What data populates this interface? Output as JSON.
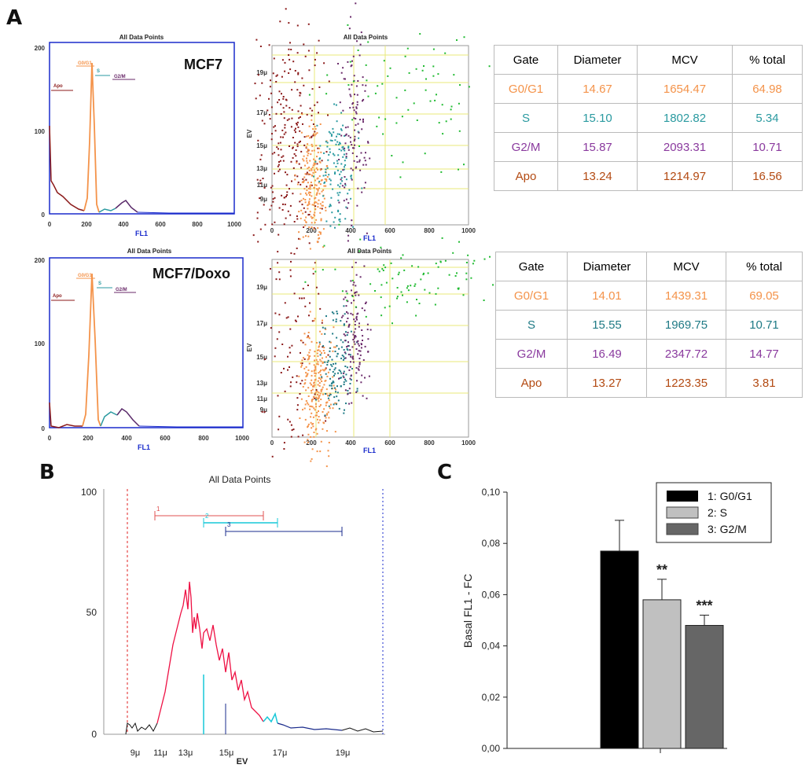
{
  "panel_labels": {
    "a": "A",
    "b": "B",
    "c": "C"
  },
  "colors": {
    "g0g1": "#f4934a",
    "s": "#2a9aa0",
    "g2m": "#8a3a9e",
    "apo": "#b34a12",
    "apo_dark": "#8b1a1a",
    "blue": "#1a2bcc"
  },
  "flow": {
    "title": "All Data Points",
    "fl1_label": "FL1",
    "ev_label": "EV",
    "cell_lines": [
      "MCF7",
      "MCF7/Doxo"
    ],
    "hist_y_ticks": [
      "0",
      "100",
      "200"
    ],
    "fl1_ticks": [
      "0",
      "200",
      "400",
      "600",
      "800",
      "1000"
    ],
    "gate_labels": [
      "Apo",
      "G0/G1",
      "S",
      "G2/M"
    ],
    "scatter_y_ticks_1": [
      "9μ",
      "11μ",
      "13μ",
      "15μ",
      "17μ",
      "19μ"
    ],
    "scatter_y_ticks_2": [
      "9μ",
      "11μ",
      "13μ",
      "15μ",
      "17μ",
      "19μ"
    ]
  },
  "tables": {
    "headers": [
      "Gate",
      "Diameter",
      "MCV",
      "% total"
    ],
    "mcf7": [
      {
        "gate": "G0/G1",
        "diameter": "14.67",
        "mcv": "1654.47",
        "total": "64.98"
      },
      {
        "gate": "S",
        "diameter": "15.10",
        "mcv": "1802.82",
        "total": "5.34"
      },
      {
        "gate": "G2/M",
        "diameter": "15.87",
        "mcv": "2093.31",
        "total": "10.71"
      },
      {
        "gate": "Apo",
        "diameter": "13.24",
        "mcv": "1214.97",
        "total": "16.56"
      }
    ],
    "mcf7_doxo": [
      {
        "gate": "G0/G1",
        "diameter": "14.01",
        "mcv": "1439.31",
        "total": "69.05"
      },
      {
        "gate": "S",
        "diameter": "15.55",
        "mcv": "1969.75",
        "total": "10.71"
      },
      {
        "gate": "G2/M",
        "diameter": "16.49",
        "mcv": "2347.72",
        "total": "14.77"
      },
      {
        "gate": "Apo",
        "diameter": "13.27",
        "mcv": "1223.35",
        "total": "3.81"
      }
    ]
  },
  "panel_b": {
    "title": "All Data Points",
    "xlabel": "EV",
    "y_ticks": [
      "0",
      "50",
      "100"
    ],
    "x_ticks": [
      "9μ",
      "11μ",
      "13μ",
      "15μ",
      "17μ",
      "19μ"
    ],
    "gates": [
      "1",
      "2",
      "3"
    ]
  },
  "chart_data": {
    "type": "bar",
    "categories": [
      "1: G0/G1",
      "2: S",
      "3: G2/M"
    ],
    "values": [
      0.077,
      0.058,
      0.048
    ],
    "errors": [
      0.012,
      0.008,
      0.004
    ],
    "significance": [
      "",
      "**",
      "***"
    ],
    "ylabel": "Basal FL1 - FC",
    "ylim": [
      0,
      0.1
    ],
    "y_ticks": [
      "0,00",
      "0,02",
      "0,04",
      "0,06",
      "0,08",
      "0,10"
    ],
    "legend_position": "top-right",
    "bar_colors": [
      "#000000",
      "#c0c0c0",
      "#666666"
    ]
  }
}
